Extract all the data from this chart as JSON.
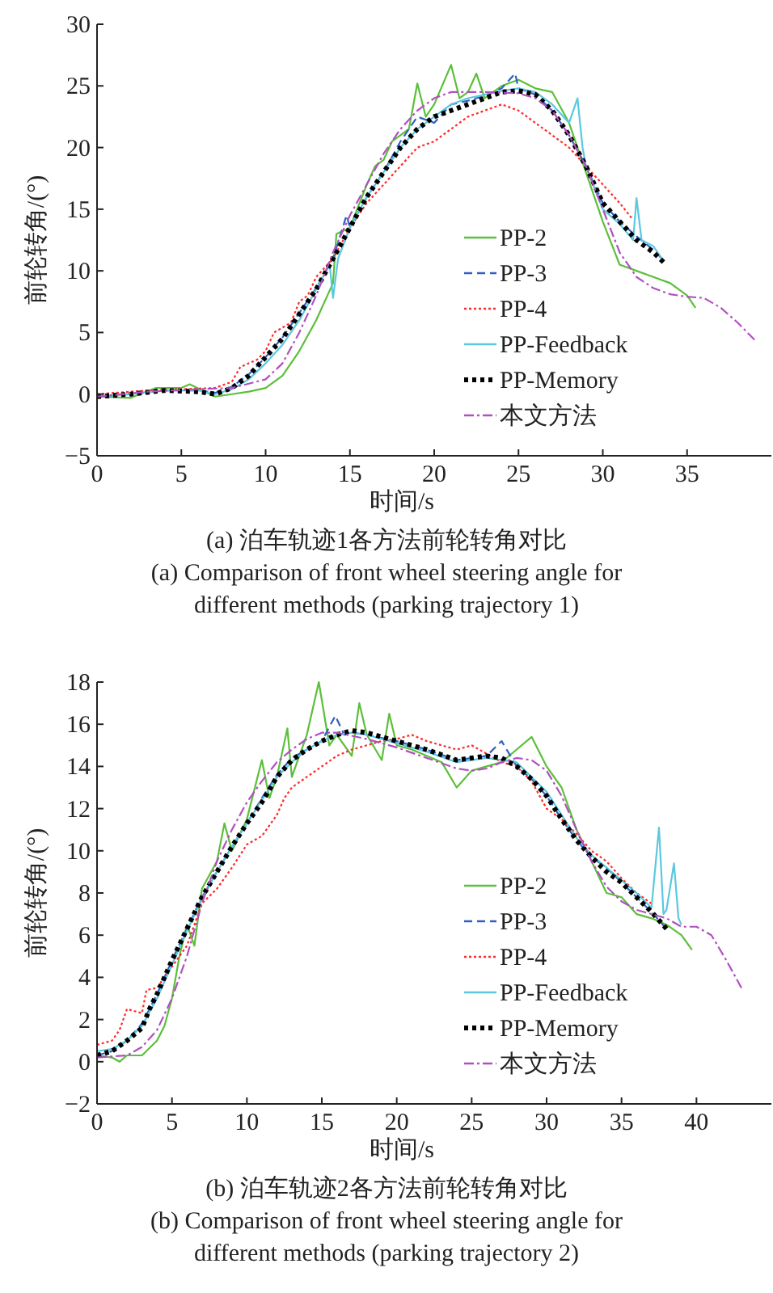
{
  "chart_data": [
    {
      "type": "line",
      "xlabel": "时间/s",
      "ylabel": "前轮转角/(°)",
      "annotations": [
        "(a) 泊车轨迹1各方法前轮转角对比",
        "(a) Comparison of front wheel steering angle for different methods (parking trajectory 1)"
      ],
      "xlim": [
        0,
        40
      ],
      "ylim": [
        -5,
        30
      ],
      "xticks": [
        0,
        5,
        10,
        15,
        20,
        25,
        30,
        35
      ],
      "yticks": [
        -5,
        0,
        5,
        10,
        15,
        20,
        25,
        30
      ],
      "grid": false,
      "legend": "bottom right",
      "series": [
        {
          "name": "PP-2",
          "color": "#5cbf3a",
          "line_style": "solid",
          "x": [
            0,
            2,
            3.5,
            5,
            5.5,
            7,
            8,
            9,
            10,
            11,
            12,
            13,
            14,
            14.2,
            15,
            16,
            16.5,
            17,
            17.5,
            18.5,
            19,
            19.5,
            20,
            21,
            21.5,
            22,
            22.5,
            23,
            24,
            25,
            26,
            27,
            28,
            29,
            30,
            31,
            32,
            33,
            34,
            35,
            35.5
          ],
          "values": [
            -0.2,
            -0.3,
            0.5,
            0.5,
            0.8,
            -0.2,
            0,
            0.2,
            0.5,
            1.5,
            3.5,
            6,
            9,
            13,
            13.5,
            17,
            18.5,
            19,
            20.5,
            21.5,
            25.2,
            22.5,
            23.5,
            26.7,
            24,
            24.5,
            26,
            24,
            25,
            25.5,
            24.8,
            24.5,
            22,
            18,
            14,
            10.5,
            10,
            9.5,
            9,
            8,
            7
          ]
        },
        {
          "name": "PP-3",
          "color": "#2f5fc4",
          "line_style": "dashed",
          "x": [
            0,
            2,
            4,
            6,
            7,
            8,
            9,
            10,
            11,
            12,
            13,
            14,
            14.8,
            15,
            16,
            17,
            18,
            19,
            20,
            21,
            22,
            23,
            24,
            24.8,
            25,
            26,
            27,
            28,
            29,
            30,
            31,
            32,
            33,
            33.5
          ],
          "values": [
            -0.2,
            0,
            0.3,
            0.3,
            0.1,
            0.6,
            1.6,
            3,
            4.6,
            6.6,
            8.6,
            11,
            14.5,
            13.5,
            16,
            18,
            20.5,
            22.5,
            22,
            23.5,
            23.8,
            24.2,
            24.8,
            26,
            24.8,
            24.3,
            23,
            21,
            18.5,
            15.5,
            14,
            12.8,
            11.7,
            11
          ]
        },
        {
          "name": "PP-4",
          "color": "#ff2a2a",
          "line_style": "dotted",
          "x": [
            0,
            3,
            7,
            8,
            8.5,
            9.5,
            10,
            10.5,
            11.5,
            12,
            12.5,
            13,
            14,
            15,
            16,
            17,
            18,
            19,
            20,
            21,
            22,
            23,
            24,
            25,
            26,
            27,
            28,
            29,
            30,
            31,
            31.7
          ],
          "values": [
            0,
            0.3,
            0.5,
            1,
            2.2,
            2.8,
            3.5,
            5,
            5.8,
            7.5,
            8,
            9.5,
            11,
            13.5,
            15.5,
            17,
            18.5,
            20,
            20.5,
            21.5,
            22.5,
            23,
            23.5,
            23,
            22,
            21,
            20,
            18.5,
            17,
            15.5,
            14.3
          ]
        },
        {
          "name": "PP-Feedback",
          "color": "#5bc8e0",
          "line_style": "solid",
          "x": [
            0,
            2,
            4,
            6,
            7,
            8,
            9,
            10,
            11,
            12,
            13,
            13.8,
            14,
            14.3,
            15,
            16,
            17,
            18,
            19,
            20,
            21,
            22,
            23,
            24,
            25,
            26,
            27,
            28,
            28.5,
            28.8,
            29,
            30,
            31,
            31.8,
            32,
            32.3,
            33,
            33.5
          ],
          "values": [
            -0.2,
            0,
            0.3,
            0.3,
            0,
            0.4,
            1.2,
            2.5,
            4,
            6,
            8.5,
            10.5,
            7.8,
            11,
            13.5,
            16,
            18,
            20,
            21.5,
            22.5,
            23.5,
            24,
            24.3,
            24.6,
            24.8,
            24.5,
            23.5,
            22,
            24,
            20,
            18.5,
            15,
            13.8,
            12.5,
            15.9,
            12.5,
            12,
            11
          ]
        },
        {
          "name": "PP-Memory",
          "color": "#000000",
          "line_style": "dotted",
          "x": [
            0,
            2,
            4,
            6,
            7,
            8,
            9,
            10,
            11,
            12,
            13,
            14,
            15,
            16,
            17,
            18,
            19,
            20,
            21,
            22,
            23,
            24,
            25,
            26,
            27,
            28,
            29,
            30,
            31,
            32,
            33,
            33.6
          ],
          "values": [
            -0.2,
            0,
            0.3,
            0.2,
            0,
            0.5,
            1.5,
            3,
            4.5,
            6.5,
            8.5,
            11,
            13.5,
            16,
            18,
            20,
            21.5,
            22.5,
            23,
            23.5,
            24,
            24.5,
            24.6,
            24.3,
            23,
            21,
            18.5,
            15.5,
            14,
            12.5,
            11.5,
            10.7
          ]
        },
        {
          "name": "本文方法",
          "color": "#b050c0",
          "line_style": "dashdot",
          "x": [
            0,
            3,
            6,
            8,
            10,
            11,
            12,
            13,
            14,
            15,
            16,
            17,
            18,
            19,
            20,
            21,
            23,
            25,
            26,
            27,
            28,
            29,
            30,
            31,
            32,
            33,
            34,
            35,
            36,
            37,
            38,
            39
          ],
          "values": [
            -0.2,
            0.2,
            0.4,
            0.5,
            1.2,
            2.5,
            5,
            8,
            11.5,
            14.5,
            17,
            19.5,
            21.5,
            23,
            24,
            24.5,
            24.5,
            24.4,
            24,
            23,
            21,
            18.5,
            15,
            11.5,
            9.5,
            8.6,
            8.1,
            7.9,
            7.8,
            7,
            5.8,
            4.4
          ]
        }
      ]
    },
    {
      "type": "line",
      "xlabel": "时间/s",
      "ylabel": "前轮转角/(°)",
      "annotations": [
        "(b) 泊车轨迹2各方法前轮转角对比",
        "(b) Comparison of front wheel steering angle for different methods (parking trajectory 2)"
      ],
      "xlim": [
        0,
        45
      ],
      "ylim": [
        -2,
        18
      ],
      "xticks": [
        0,
        5,
        10,
        15,
        20,
        25,
        30,
        35,
        40
      ],
      "yticks": [
        -2,
        0,
        2,
        4,
        6,
        8,
        10,
        12,
        14,
        16,
        18
      ],
      "grid": false,
      "legend": "bottom right",
      "series": [
        {
          "name": "PP-2",
          "color": "#5cbf3a",
          "line_style": "solid",
          "x": [
            0,
            1,
            1.5,
            2,
            3,
            4,
            4.5,
            5,
            5.5,
            6,
            6.5,
            7,
            8,
            8.5,
            9,
            10,
            11,
            11.5,
            12,
            12.7,
            13,
            14,
            14.8,
            15.5,
            16,
            17,
            17.5,
            18,
            19,
            19.5,
            20,
            21,
            22,
            23,
            24,
            25,
            26,
            27,
            28,
            29,
            30,
            31,
            32,
            33,
            34,
            35,
            36,
            37,
            38,
            39,
            39.7
          ],
          "values": [
            0.3,
            0.2,
            0,
            0.3,
            0.3,
            1,
            1.7,
            3,
            5,
            6.5,
            5.5,
            8.2,
            9.5,
            11.3,
            10,
            11.5,
            14.3,
            12.5,
            13.5,
            15.8,
            13.5,
            15.5,
            18,
            15,
            15.5,
            14.5,
            17,
            15.5,
            14.3,
            16.5,
            15,
            14.8,
            14.5,
            14.2,
            13,
            13.8,
            14,
            14.2,
            14.8,
            15.4,
            14,
            13,
            11,
            9.5,
            8,
            7.8,
            7,
            6.8,
            6.5,
            6,
            5.3
          ]
        },
        {
          "name": "PP-3",
          "color": "#2f5fc4",
          "line_style": "dashed",
          "x": [
            0,
            1,
            2,
            3,
            4,
            5,
            6,
            7,
            8,
            9,
            10,
            11,
            12,
            13,
            14,
            15,
            15.9,
            16.5,
            17,
            18,
            20,
            22,
            24,
            25,
            26,
            27,
            28,
            29,
            30,
            31,
            32,
            33,
            34,
            35,
            36,
            37,
            38
          ],
          "values": [
            0.3,
            0.5,
            1,
            1.8,
            3.2,
            4.8,
            6.3,
            7.8,
            9,
            10.2,
            11.3,
            12.5,
            13.6,
            14.4,
            14.8,
            15.2,
            16.4,
            15.5,
            15.6,
            15.5,
            15.2,
            14.8,
            14.3,
            14.4,
            14.5,
            15.2,
            14,
            13.4,
            12.6,
            11.5,
            10.5,
            9.7,
            9.2,
            8.5,
            7.8,
            7.1,
            6.3
          ]
        },
        {
          "name": "PP-4",
          "color": "#ff2a2a",
          "line_style": "dotted",
          "x": [
            0,
            1,
            1.5,
            2,
            3,
            3.3,
            4,
            5,
            6,
            7,
            8,
            9,
            10,
            11,
            12,
            12.5,
            13,
            14,
            15,
            16,
            17,
            18,
            19,
            20,
            21,
            22,
            23,
            24,
            25,
            26,
            27,
            28,
            29,
            30,
            31,
            32,
            33,
            34,
            35,
            36,
            37
          ],
          "values": [
            0.8,
            1,
            1.5,
            2.5,
            2.3,
            3.4,
            3.5,
            4.5,
            5.5,
            7.5,
            8.2,
            9.2,
            10.3,
            10.7,
            11.7,
            12.5,
            13,
            13.5,
            14,
            14.5,
            14.8,
            15,
            15.2,
            15.3,
            15.5,
            15.2,
            15,
            14.8,
            15,
            14.6,
            14.2,
            14,
            13.3,
            12,
            11.5,
            10.8,
            10,
            9.5,
            8.7,
            8,
            7.5
          ]
        },
        {
          "name": "PP-Feedback",
          "color": "#5bc8e0",
          "line_style": "solid",
          "x": [
            0,
            1,
            2,
            3,
            4,
            5,
            6,
            7,
            8,
            9,
            10,
            11,
            12,
            13,
            14,
            15,
            16,
            17,
            18,
            20,
            22,
            24,
            26,
            28,
            30,
            31,
            32,
            33,
            34,
            35,
            36,
            37,
            37.5,
            37.8,
            38,
            38.5,
            38.8,
            39
          ],
          "values": [
            0.5,
            0.6,
            1,
            1.7,
            3,
            4.6,
            6.2,
            7.7,
            9,
            10.2,
            11.3,
            12.4,
            13.5,
            14.2,
            14.8,
            15.2,
            15.5,
            15.6,
            15.5,
            15.1,
            14.7,
            14.2,
            14.4,
            14.2,
            12.8,
            11.7,
            10.6,
            9.8,
            9.2,
            8.6,
            8,
            7.3,
            11.1,
            7,
            7.2,
            9.4,
            6.8,
            6.5
          ]
        },
        {
          "name": "PP-Memory",
          "color": "#000000",
          "line_style": "dotted",
          "x": [
            0,
            1,
            2,
            3,
            3.5,
            4,
            5,
            6,
            7,
            8,
            9,
            10,
            11,
            12,
            13,
            14,
            15,
            16,
            17,
            18,
            20,
            22,
            24,
            25,
            26,
            27,
            28,
            29,
            30,
            31,
            32,
            33,
            34,
            35,
            36,
            37,
            38
          ],
          "values": [
            0.3,
            0.5,
            1,
            1.6,
            2.5,
            3.2,
            4.8,
            6.3,
            7.8,
            9,
            10.2,
            11.3,
            12.3,
            13.5,
            14.3,
            14.8,
            15.2,
            15.5,
            15.7,
            15.6,
            15.2,
            14.8,
            14.3,
            14.4,
            14.5,
            14.4,
            14,
            13.4,
            12.6,
            11.5,
            10.5,
            9.7,
            9,
            8.5,
            7.8,
            7.1,
            6.3
          ]
        },
        {
          "name": "本文方法",
          "color": "#b050c0",
          "line_style": "dashdot",
          "x": [
            0,
            2,
            3,
            4,
            5,
            6,
            7,
            8,
            9,
            10,
            11,
            12,
            13,
            14,
            15,
            16,
            18,
            20,
            22,
            24,
            25,
            26,
            27,
            28,
            29,
            30,
            31,
            32,
            33,
            34,
            35,
            36,
            37,
            38,
            39,
            40,
            41,
            42,
            43
          ],
          "values": [
            0.2,
            0.3,
            0.7,
            1.5,
            3,
            5,
            7.5,
            9.5,
            11,
            12.3,
            13.3,
            14.2,
            14.8,
            15.3,
            15.6,
            15.6,
            15.3,
            14.9,
            14.4,
            13.9,
            13.8,
            13.9,
            14.2,
            14.4,
            14.3,
            13.8,
            12.6,
            11,
            9.5,
            8.3,
            7.6,
            7.2,
            7,
            6.8,
            6.4,
            6.4,
            6,
            4.8,
            3.5
          ]
        }
      ]
    }
  ]
}
